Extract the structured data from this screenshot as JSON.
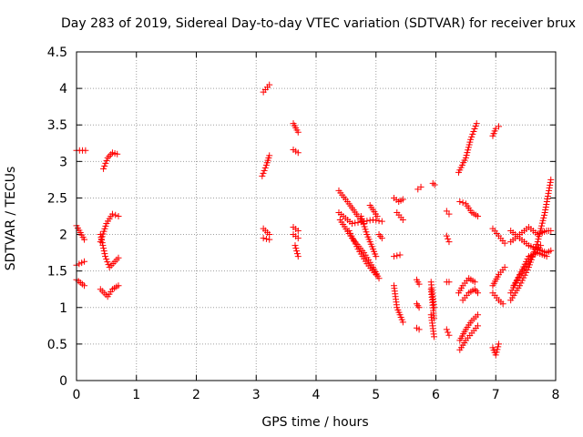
{
  "chart_data": {
    "type": "scatter",
    "title": "Day 283 of 2019, Sidereal Day-to-day VTEC variation (SDTVAR) for receiver brux",
    "xlabel": "GPS time / hours",
    "ylabel": "SDTVAR / TECUs",
    "xlim": [
      0,
      8
    ],
    "ylim": [
      0,
      4.5
    ],
    "xticks": [
      "0",
      "1",
      "2",
      "3",
      "4",
      "5",
      "6",
      "7",
      "8"
    ],
    "yticks": [
      "0",
      "0.5",
      "1",
      "1.5",
      "2",
      "2.5",
      "3",
      "3.5",
      "4",
      "4.5"
    ],
    "grid": true,
    "marker": "plus",
    "color": "#ff0000",
    "segments": [
      {
        "x": [
          0.0,
          0.15
        ],
        "y": [
          3.15,
          3.15
        ]
      },
      {
        "x": [
          0.0,
          0.13
        ],
        "y": [
          2.12,
          1.93
        ]
      },
      {
        "x": [
          0.0,
          0.13
        ],
        "y": [
          1.58,
          1.63
        ]
      },
      {
        "x": [
          0.0,
          0.13
        ],
        "y": [
          1.38,
          1.3
        ]
      },
      {
        "x": [
          0.45,
          0.52,
          0.6,
          0.68
        ],
        "y": [
          2.9,
          3.05,
          3.12,
          3.1
        ]
      },
      {
        "x": [
          0.4,
          0.5,
          0.6,
          0.7
        ],
        "y": [
          1.9,
          2.15,
          2.28,
          2.25
        ]
      },
      {
        "x": [
          0.4,
          0.48,
          0.55,
          0.7
        ],
        "y": [
          2.0,
          1.7,
          1.55,
          1.68
        ]
      },
      {
        "x": [
          0.4,
          0.52,
          0.6,
          0.7
        ],
        "y": [
          1.25,
          1.15,
          1.25,
          1.3
        ]
      },
      {
        "x": [
          3.12,
          3.22
        ],
        "y": [
          3.95,
          4.05
        ]
      },
      {
        "x": [
          3.1,
          3.17,
          3.22
        ],
        "y": [
          2.8,
          2.95,
          3.08
        ]
      },
      {
        "x": [
          3.12,
          3.22
        ],
        "y": [
          2.08,
          2.0
        ]
      },
      {
        "x": [
          3.12,
          3.22
        ],
        "y": [
          1.95,
          1.93
        ]
      },
      {
        "x": [
          3.62,
          3.7
        ],
        "y": [
          3.52,
          3.4
        ]
      },
      {
        "x": [
          3.62,
          3.7
        ],
        "y": [
          3.16,
          3.12
        ]
      },
      {
        "x": [
          3.62,
          3.7
        ],
        "y": [
          2.1,
          2.05
        ]
      },
      {
        "x": [
          3.62,
          3.7
        ],
        "y": [
          2.0,
          1.95
        ]
      },
      {
        "x": [
          3.65,
          3.7
        ],
        "y": [
          1.85,
          1.7
        ]
      },
      {
        "x": [
          4.38,
          4.55,
          4.7,
          4.8
        ],
        "y": [
          2.6,
          2.42,
          2.25,
          2.15
        ]
      },
      {
        "x": [
          4.38,
          4.6,
          4.8,
          4.95,
          5.1
        ],
        "y": [
          2.3,
          2.15,
          2.18,
          2.2,
          2.18
        ]
      },
      {
        "x": [
          4.4,
          4.6,
          4.8,
          4.95,
          5.05
        ],
        "y": [
          2.2,
          1.95,
          1.75,
          1.55,
          1.4
        ]
      },
      {
        "x": [
          4.55,
          4.7,
          4.85,
          5.0
        ],
        "y": [
          2.05,
          1.8,
          1.6,
          1.45
        ]
      },
      {
        "x": [
          4.75,
          4.85,
          5.0
        ],
        "y": [
          2.25,
          2.0,
          1.7
        ]
      },
      {
        "x": [
          4.9,
          5.02
        ],
        "y": [
          2.4,
          2.25
        ]
      },
      {
        "x": [
          5.05,
          5.1
        ],
        "y": [
          2.0,
          1.95
        ]
      },
      {
        "x": [
          5.3,
          5.38,
          5.45
        ],
        "y": [
          2.5,
          2.45,
          2.48
        ]
      },
      {
        "x": [
          5.35,
          5.45
        ],
        "y": [
          2.3,
          2.2
        ]
      },
      {
        "x": [
          5.3,
          5.4
        ],
        "y": [
          1.7,
          1.72
        ]
      },
      {
        "x": [
          5.3,
          5.35,
          5.45
        ],
        "y": [
          1.3,
          1.0,
          0.8
        ]
      },
      {
        "x": [
          5.7,
          5.75
        ],
        "y": [
          2.62,
          2.65
        ]
      },
      {
        "x": [
          5.68,
          5.72
        ],
        "y": [
          1.38,
          1.32
        ]
      },
      {
        "x": [
          5.68,
          5.72
        ],
        "y": [
          1.05,
          1.0
        ]
      },
      {
        "x": [
          5.68,
          5.72
        ],
        "y": [
          0.72,
          0.7
        ]
      },
      {
        "x": [
          5.92,
          5.97
        ],
        "y": [
          1.35,
          1.0
        ]
      },
      {
        "x": [
          5.92,
          5.97
        ],
        "y": [
          1.25,
          0.85
        ]
      },
      {
        "x": [
          5.92,
          5.97
        ],
        "y": [
          0.9,
          0.6
        ]
      },
      {
        "x": [
          5.95,
          5.98
        ],
        "y": [
          2.7,
          2.68
        ]
      },
      {
        "x": [
          6.18,
          6.22
        ],
        "y": [
          2.32,
          2.28
        ]
      },
      {
        "x": [
          6.18,
          6.22
        ],
        "y": [
          1.98,
          1.9
        ]
      },
      {
        "x": [
          6.18,
          6.22
        ],
        "y": [
          1.35,
          1.35
        ]
      },
      {
        "x": [
          6.18,
          6.22
        ],
        "y": [
          0.7,
          0.62
        ]
      },
      {
        "x": [
          6.38,
          6.5,
          6.58,
          6.68
        ],
        "y": [
          2.85,
          3.05,
          3.3,
          3.52
        ]
      },
      {
        "x": [
          6.4,
          6.5,
          6.6,
          6.7
        ],
        "y": [
          2.45,
          2.42,
          2.3,
          2.25
        ]
      },
      {
        "x": [
          6.38,
          6.45,
          6.55,
          6.65
        ],
        "y": [
          1.2,
          1.3,
          1.4,
          1.35
        ]
      },
      {
        "x": [
          6.45,
          6.55,
          6.65,
          6.7
        ],
        "y": [
          1.1,
          1.2,
          1.25,
          1.2
        ]
      },
      {
        "x": [
          6.4,
          6.5,
          6.6,
          6.7
        ],
        "y": [
          0.55,
          0.7,
          0.82,
          0.9
        ]
      },
      {
        "x": [
          6.4,
          6.5,
          6.6,
          6.7
        ],
        "y": [
          0.42,
          0.55,
          0.65,
          0.75
        ]
      },
      {
        "x": [
          6.95,
          7.0,
          7.05
        ],
        "y": [
          3.35,
          3.45,
          3.48
        ]
      },
      {
        "x": [
          6.95,
          7.05,
          7.15
        ],
        "y": [
          2.08,
          1.98,
          1.88
        ]
      },
      {
        "x": [
          6.95,
          7.05,
          7.15
        ],
        "y": [
          1.3,
          1.45,
          1.55
        ]
      },
      {
        "x": [
          6.95,
          7.05,
          7.12
        ],
        "y": [
          1.2,
          1.1,
          1.05
        ]
      },
      {
        "x": [
          6.95,
          7.0,
          7.05
        ],
        "y": [
          0.45,
          0.35,
          0.5
        ]
      },
      {
        "x": [
          7.25,
          7.4,
          7.55,
          7.7,
          7.82,
          7.92
        ],
        "y": [
          1.1,
          1.3,
          1.55,
          1.9,
          2.3,
          2.75
        ]
      },
      {
        "x": [
          7.25,
          7.4,
          7.55,
          7.7,
          7.85
        ],
        "y": [
          1.2,
          1.45,
          1.7,
          1.75,
          1.7
        ]
      },
      {
        "x": [
          7.25,
          7.4,
          7.55,
          7.7,
          7.85,
          7.92
        ],
        "y": [
          2.05,
          1.95,
          1.85,
          1.8,
          1.75,
          1.78
        ]
      },
      {
        "x": [
          7.25,
          7.4,
          7.55,
          7.7,
          7.85,
          7.92
        ],
        "y": [
          1.9,
          2.0,
          2.1,
          2.0,
          2.05,
          2.05
        ]
      },
      {
        "x": [
          7.3,
          7.45,
          7.6,
          7.75
        ],
        "y": [
          1.3,
          1.5,
          1.7,
          1.85
        ]
      }
    ]
  }
}
